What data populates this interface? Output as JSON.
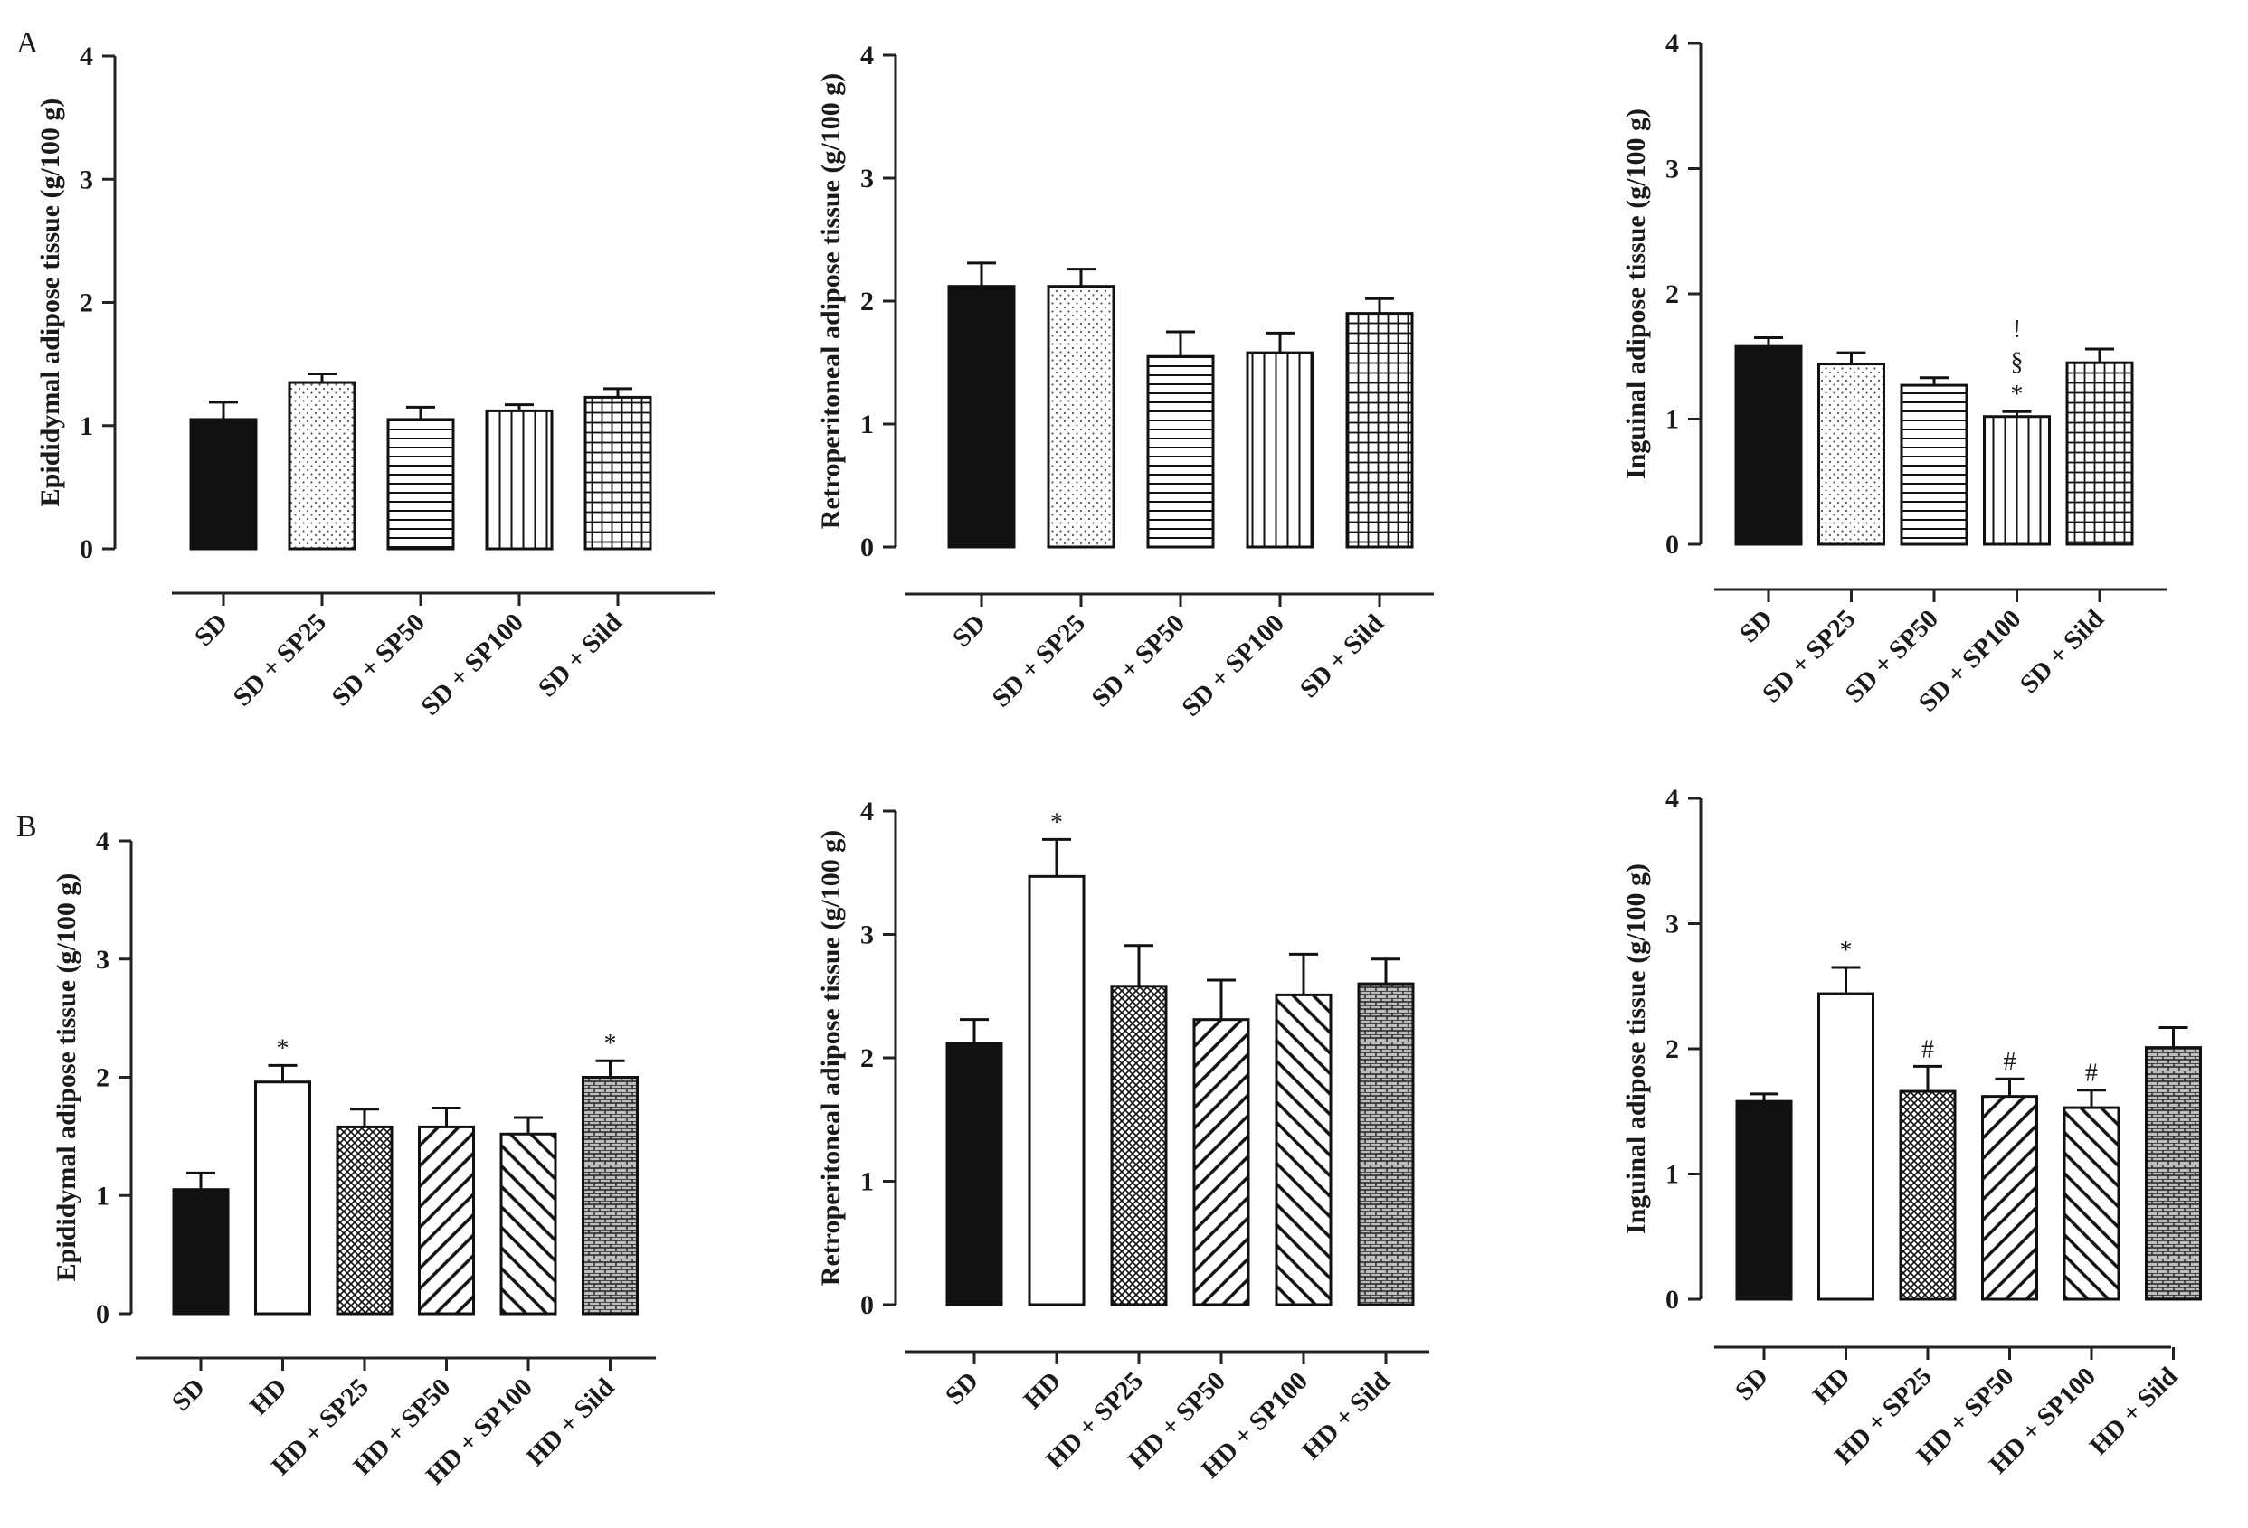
{
  "figure": {
    "panel_labels": [
      "A",
      "B"
    ]
  },
  "chart_data": [
    {
      "type": "bar",
      "panel": "A",
      "position": "top-left",
      "ylabel": "Epididymal adipose tissue (g/100 g)",
      "ylim": [
        0,
        4
      ],
      "yticks": [
        "0",
        "1",
        "2",
        "3",
        "4"
      ],
      "categories": [
        "SD",
        "SD + SP25",
        "SD + SP50",
        "SD + SP100",
        "SD + Sild"
      ],
      "values": [
        1.05,
        1.35,
        1.05,
        1.12,
        1.23
      ],
      "errors": [
        0.14,
        0.07,
        0.1,
        0.05,
        0.07
      ],
      "patterns": [
        "solid",
        "dots",
        "hlines",
        "vlines",
        "grid"
      ],
      "annotations": [
        [],
        [],
        [],
        [],
        []
      ]
    },
    {
      "type": "bar",
      "panel": "A",
      "position": "top-center",
      "ylabel": "Retroperitoneal adipose tissue (g/100 g)",
      "ylim": [
        0,
        4
      ],
      "yticks": [
        "0",
        "1",
        "2",
        "3",
        "4"
      ],
      "categories": [
        "SD",
        "SD + SP25",
        "SD + SP50",
        "SD + SP100",
        "SD + Sild"
      ],
      "values": [
        2.12,
        2.12,
        1.55,
        1.58,
        1.9
      ],
      "errors": [
        0.19,
        0.14,
        0.2,
        0.16,
        0.12
      ],
      "patterns": [
        "solid",
        "dots",
        "hlines",
        "vlines",
        "grid"
      ],
      "annotations": [
        [],
        [],
        [],
        [],
        []
      ]
    },
    {
      "type": "bar",
      "panel": "A",
      "position": "top-right",
      "ylabel": "Inguinal adipose tissue (g/100 g)",
      "ylim": [
        0,
        4
      ],
      "yticks": [
        "0",
        "1",
        "2",
        "3",
        "4"
      ],
      "categories": [
        "SD",
        "SD + SP25",
        "SD + SP50",
        "SD + SP100",
        "SD + Sild"
      ],
      "values": [
        1.58,
        1.44,
        1.27,
        1.02,
        1.45
      ],
      "errors": [
        0.07,
        0.09,
        0.06,
        0.04,
        0.11
      ],
      "patterns": [
        "solid",
        "dots",
        "hlines",
        "vlines",
        "grid"
      ],
      "annotations": [
        [],
        [],
        [],
        [
          "*",
          "§",
          "!"
        ],
        []
      ]
    },
    {
      "type": "bar",
      "panel": "B",
      "position": "bottom-left",
      "ylabel": "Epididymal adipose tissue (g/100 g)",
      "ylim": [
        0,
        4
      ],
      "yticks": [
        "0",
        "1",
        "2",
        "3",
        "4"
      ],
      "categories": [
        "SD",
        "HD",
        "HD + SP25",
        "HD + SP50",
        "HD + SP100",
        "HD + Sild"
      ],
      "values": [
        1.05,
        1.96,
        1.58,
        1.58,
        1.52,
        2.0
      ],
      "errors": [
        0.14,
        0.14,
        0.15,
        0.16,
        0.14,
        0.14
      ],
      "patterns": [
        "solid",
        "white",
        "crosshatch",
        "diagback",
        "diagfwd",
        "brick"
      ],
      "annotations": [
        [],
        [
          "*"
        ],
        [],
        [],
        [],
        [
          "*"
        ]
      ]
    },
    {
      "type": "bar",
      "panel": "B",
      "position": "bottom-center",
      "ylabel": "Retroperitoneal adipose tissue (g/100 g)",
      "ylim": [
        0,
        4
      ],
      "yticks": [
        "0",
        "1",
        "2",
        "3",
        "4"
      ],
      "categories": [
        "SD",
        "HD",
        "HD + SP25",
        "HD + SP50",
        "HD + SP100",
        "HD + Sild"
      ],
      "values": [
        2.12,
        3.47,
        2.58,
        2.31,
        2.51,
        2.6
      ],
      "errors": [
        0.19,
        0.3,
        0.33,
        0.32,
        0.33,
        0.2
      ],
      "patterns": [
        "solid",
        "white",
        "crosshatch",
        "diagback",
        "diagfwd",
        "brick"
      ],
      "annotations": [
        [],
        [
          "*"
        ],
        [],
        [],
        [],
        []
      ]
    },
    {
      "type": "bar",
      "panel": "B",
      "position": "bottom-right",
      "ylabel": "Inguinal adipose tissue (g/100 g)",
      "ylim": [
        0,
        4
      ],
      "yticks": [
        "0",
        "1",
        "2",
        "3",
        "4"
      ],
      "categories": [
        "SD",
        "HD",
        "HD + SP25",
        "HD + SP50",
        "HD + SP100",
        "HD + Sild"
      ],
      "values": [
        1.58,
        2.44,
        1.66,
        1.62,
        1.53,
        2.01
      ],
      "errors": [
        0.06,
        0.21,
        0.2,
        0.14,
        0.14,
        0.16
      ],
      "patterns": [
        "solid",
        "white",
        "crosshatch",
        "diagback",
        "diagfwd",
        "brick"
      ],
      "annotations": [
        [],
        [
          "*"
        ],
        [
          "#"
        ],
        [
          "#"
        ],
        [
          "#"
        ],
        []
      ]
    }
  ]
}
